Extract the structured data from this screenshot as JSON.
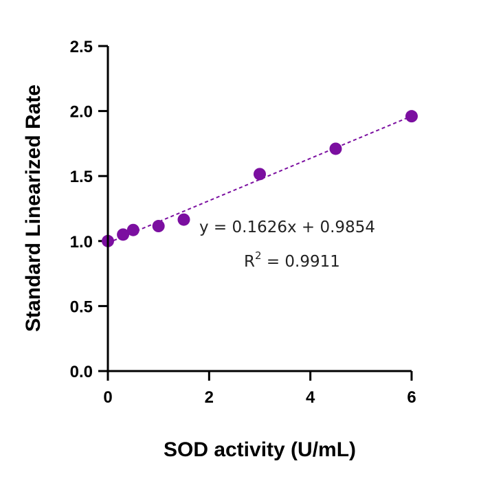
{
  "chart_data": {
    "type": "scatter",
    "xlabel": "SOD activity (U/mL)",
    "ylabel": "Standard Linearized Rate",
    "xlim": [
      0,
      6
    ],
    "ylim": [
      0,
      2.5
    ],
    "xticks": [
      "0",
      "2",
      "4",
      "6"
    ],
    "yticks": [
      "0.0",
      "0.5",
      "1.0",
      "1.5",
      "2.0",
      "2.5"
    ],
    "grid": false,
    "x": [
      0,
      0.3,
      0.5,
      1.0,
      1.5,
      3.0,
      4.5,
      6.0
    ],
    "y": [
      1.0,
      1.05,
      1.085,
      1.115,
      1.165,
      1.515,
      1.71,
      1.96
    ],
    "fit": {
      "slope": 0.1626,
      "intercept": 0.9854,
      "equation": "y = 0.1626x + 0.9854",
      "r2_prefix": "R",
      "r2_sup": "2",
      "r2_rest": " = 0.9911"
    },
    "colors": {
      "points": "#7b0fa0",
      "fit_line": "#7b0fa0",
      "axes": "#000000"
    }
  }
}
